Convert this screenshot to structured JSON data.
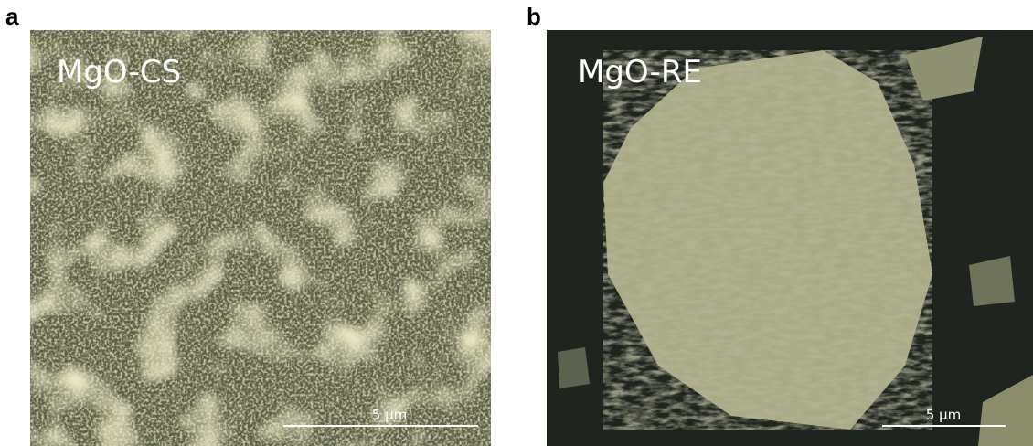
{
  "panels": [
    {
      "label": "a",
      "caption": "MgO-CS",
      "scale_bar": "5 µm"
    },
    {
      "label": "b",
      "caption": "MgO-RE",
      "scale_bar": "5 µm"
    }
  ]
}
